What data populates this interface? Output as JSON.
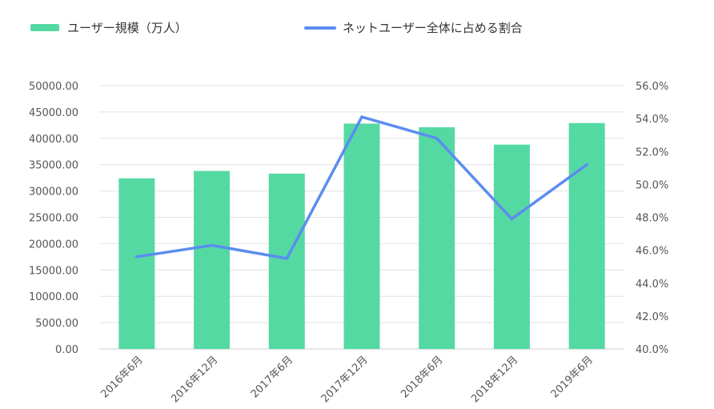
{
  "chart_data": {
    "type": "bar",
    "categories": [
      "2016年6月",
      "2016年12月",
      "2017年6月",
      "2017年12月",
      "2018年6月",
      "2018年12月",
      "2019年6月"
    ],
    "series": [
      {
        "name": "ユーザー規模（万人）",
        "type": "bar",
        "axis": "left",
        "values": [
          32400,
          33800,
          33300,
          42800,
          42100,
          38800,
          42900
        ]
      },
      {
        "name": "ネットユーザー全体に占める割合",
        "type": "line",
        "axis": "right",
        "values": [
          45.6,
          46.3,
          45.5,
          54.1,
          52.8,
          47.9,
          51.2
        ]
      }
    ],
    "left_axis": {
      "min": 0,
      "max": 50000,
      "step": 5000,
      "decimals": 2,
      "suffix": ""
    },
    "right_axis": {
      "min": 40,
      "max": 56,
      "step": 2,
      "decimals": 1,
      "suffix": "%"
    },
    "grid": true,
    "legend_position": "top-left",
    "colors": {
      "bar": "#55d9a3",
      "line": "#5b8def",
      "grid": "#e2e2e2",
      "axis": "#cccccc"
    }
  }
}
